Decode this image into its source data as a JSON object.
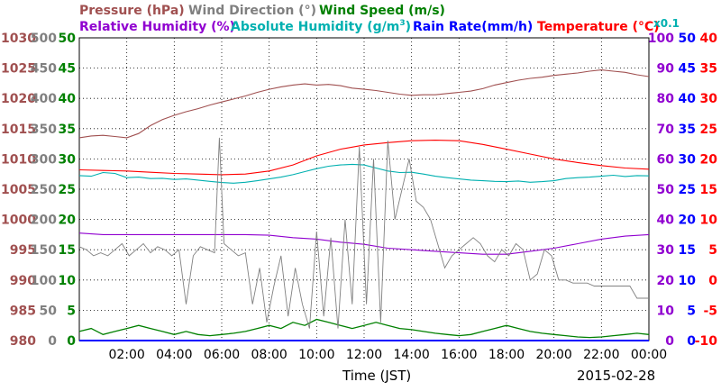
{
  "legend": {
    "pressure": "Pressure (hPa)",
    "wind_direction": "Wind Direction (°)",
    "wind_speed": "Wind Speed (m/s)",
    "relative_humidity": "Relative Humidity (%)",
    "absolute_humidity": "Absolute Humidity (g/m",
    "absolute_humidity_sup": "3",
    "absolute_humidity_close": ")",
    "abs_scale_note": "x0.1",
    "rain_rate": "Rain Rate(mm/h)",
    "temperature": "Temperature (°C)"
  },
  "colors": {
    "pressure": "#a05050",
    "wind_direction": "#808080",
    "wind_speed": "#008000",
    "relative_humidity": "#9000d0",
    "absolute_humidity": "#00b0b0",
    "rain_rate": "#0000ff",
    "temperature": "#ff0000"
  },
  "xaxis": {
    "label": "Time (JST)",
    "date": "2015-02-28",
    "ticks": [
      "02:00",
      "04:00",
      "06:00",
      "08:00",
      "10:00",
      "12:00",
      "14:00",
      "16:00",
      "18:00",
      "20:00",
      "22:00",
      "00:00"
    ]
  },
  "chart_data": {
    "type": "line",
    "x_range_hours": [
      0,
      24
    ],
    "grid": true,
    "left_axes": [
      {
        "name": "pressure",
        "ticks": [
          "1030",
          "1025",
          "1020",
          "1015",
          "1010",
          "1005",
          "1000",
          "995",
          "990",
          "985",
          "980"
        ],
        "ylim": [
          980,
          1030
        ]
      },
      {
        "name": "wind_direction",
        "ticks": [
          "500",
          "450",
          "400",
          "350",
          "300",
          "250",
          "200",
          "150",
          "100",
          "50",
          "0"
        ],
        "ylim": [
          0,
          500
        ]
      },
      {
        "name": "wind_speed",
        "ticks": [
          "50",
          "45",
          "40",
          "35",
          "30",
          "25",
          "20",
          "15",
          "10",
          "5",
          "0"
        ],
        "ylim": [
          0,
          50
        ]
      }
    ],
    "right_axes": [
      {
        "name": "relative_humidity",
        "ticks": [
          "100",
          "90",
          "80",
          "70",
          "60",
          "50",
          "40",
          "30",
          "20",
          "10",
          "0"
        ],
        "ylim": [
          0,
          100
        ]
      },
      {
        "name": "rain_rate",
        "ticks": [
          "50",
          "45",
          "40",
          "35",
          "30",
          "25",
          "20",
          "15",
          "10",
          "5",
          "0"
        ],
        "ylim": [
          0,
          50
        ]
      },
      {
        "name": "temperature",
        "ticks": [
          "40",
          "35",
          "30",
          "25",
          "20",
          "15",
          "10",
          "5",
          "0",
          "-5",
          "-10"
        ],
        "ylim": [
          -10,
          40
        ]
      }
    ],
    "series": [
      {
        "name": "Pressure (hPa)",
        "key": "pressure",
        "axis": "pressure",
        "x": [
          0,
          0.5,
          1,
          1.5,
          2,
          2.5,
          3,
          3.5,
          4,
          4.5,
          5,
          5.5,
          6,
          6.5,
          7,
          7.5,
          8,
          8.5,
          9,
          9.5,
          10,
          10.5,
          11,
          11.5,
          12,
          12.5,
          13,
          13.5,
          14,
          14.5,
          15,
          15.5,
          16,
          16.5,
          17,
          17.5,
          18,
          18.5,
          19,
          19.5,
          20,
          20.5,
          21,
          21.5,
          22,
          22.5,
          23,
          23.5,
          24
        ],
        "y": [
          1013.5,
          1013.8,
          1013.9,
          1013.7,
          1013.5,
          1014.2,
          1015.5,
          1016.5,
          1017.2,
          1017.8,
          1018.3,
          1018.9,
          1019.4,
          1019.9,
          1020.4,
          1021.0,
          1021.5,
          1021.9,
          1022.2,
          1022.4,
          1022.2,
          1022.3,
          1022.1,
          1021.7,
          1021.5,
          1021.3,
          1021.0,
          1020.7,
          1020.5,
          1020.6,
          1020.6,
          1020.8,
          1021.0,
          1021.2,
          1021.6,
          1022.2,
          1022.6,
          1023.0,
          1023.3,
          1023.5,
          1023.8,
          1024.0,
          1024.2,
          1024.5,
          1024.7,
          1024.5,
          1024.3,
          1023.9,
          1023.6
        ]
      },
      {
        "name": "Temperature (°C)",
        "key": "temperature",
        "axis": "temperature",
        "x": [
          0,
          1,
          2,
          3,
          4,
          5,
          6,
          7,
          8,
          9,
          10,
          11,
          12,
          13,
          14,
          15,
          16,
          17,
          18,
          19,
          20,
          21,
          22,
          23,
          24
        ],
        "y": [
          18.2,
          18.1,
          18.0,
          17.8,
          17.6,
          17.5,
          17.4,
          17.5,
          18.0,
          19.0,
          20.5,
          21.6,
          22.3,
          22.7,
          23.0,
          23.1,
          23.0,
          22.4,
          21.6,
          20.8,
          20.0,
          19.4,
          18.9,
          18.5,
          18.3
        ]
      },
      {
        "name": "Absolute Humidity (g/m3) x0.1",
        "key": "absolute_humidity",
        "axis": "relative_humidity",
        "x": [
          0,
          0.5,
          1,
          1.5,
          2,
          2.5,
          3,
          3.5,
          4,
          4.5,
          5,
          5.5,
          6,
          6.5,
          7,
          7.5,
          8,
          8.5,
          9,
          9.5,
          10,
          10.5,
          11,
          11.5,
          12,
          12.5,
          13,
          13.5,
          14,
          14.5,
          15,
          15.5,
          16,
          16.5,
          17,
          17.5,
          18,
          18.5,
          19,
          19.5,
          20,
          20.5,
          21,
          21.5,
          22,
          22.5,
          23,
          23.5,
          24
        ],
        "y": [
          54.5,
          54.3,
          55.5,
          55.2,
          53.8,
          54.0,
          53.5,
          53.6,
          53.2,
          53.4,
          53.0,
          52.6,
          52.2,
          52.0,
          52.3,
          52.8,
          53.4,
          54.0,
          54.8,
          55.8,
          56.8,
          57.6,
          58.0,
          58.2,
          58.0,
          57.0,
          56.0,
          55.5,
          55.6,
          55.0,
          54.3,
          53.8,
          53.4,
          53.0,
          52.8,
          52.6,
          52.5,
          52.7,
          52.3,
          52.5,
          52.8,
          53.5,
          53.8,
          54.0,
          54.3,
          54.6,
          54.2,
          54.5,
          54.4
        ]
      },
      {
        "name": "Relative Humidity (%)",
        "key": "relative_humidity",
        "axis": "relative_humidity",
        "x": [
          0,
          1,
          2,
          3,
          4,
          5,
          6,
          7,
          8,
          9,
          10,
          11,
          12,
          13,
          14,
          15,
          16,
          17,
          18,
          19,
          20,
          21,
          22,
          23,
          24
        ],
        "y": [
          35.5,
          35.0,
          35.0,
          35.0,
          35.0,
          35.0,
          35.0,
          35.0,
          34.8,
          34.0,
          33.5,
          32.5,
          31.8,
          30.5,
          30.0,
          29.5,
          29.0,
          28.5,
          28.5,
          29.5,
          30.5,
          32.0,
          33.5,
          34.5,
          35.0
        ]
      },
      {
        "name": "Wind Direction (°)",
        "key": "wind_direction",
        "axis": "wind_direction",
        "x": [
          0,
          0.3,
          0.6,
          0.9,
          1.2,
          1.5,
          1.8,
          2.1,
          2.4,
          2.7,
          3.0,
          3.3,
          3.6,
          3.9,
          4.2,
          4.5,
          4.8,
          5.1,
          5.4,
          5.7,
          5.9,
          6.1,
          6.4,
          6.7,
          7.0,
          7.3,
          7.6,
          7.9,
          8.2,
          8.5,
          8.8,
          9.1,
          9.4,
          9.7,
          10.0,
          10.3,
          10.6,
          10.9,
          11.2,
          11.5,
          11.8,
          12.1,
          12.4,
          12.7,
          13.0,
          13.3,
          13.6,
          13.9,
          14.2,
          14.5,
          14.8,
          15.1,
          15.4,
          15.7,
          16.0,
          16.3,
          16.6,
          16.9,
          17.2,
          17.5,
          17.8,
          18.1,
          18.4,
          18.7,
          19.0,
          19.3,
          19.6,
          19.9,
          20.2,
          20.5,
          20.8,
          21.1,
          21.4,
          21.7,
          22.0,
          22.3,
          22.6,
          22.9,
          23.2,
          23.5,
          23.8,
          24.0
        ],
        "y": [
          155,
          150,
          140,
          145,
          140,
          150,
          160,
          140,
          150,
          160,
          145,
          155,
          150,
          140,
          150,
          60,
          140,
          155,
          150,
          145,
          335,
          160,
          150,
          140,
          145,
          60,
          120,
          30,
          90,
          140,
          40,
          120,
          60,
          20,
          180,
          40,
          170,
          20,
          200,
          60,
          320,
          60,
          300,
          30,
          330,
          200,
          250,
          300,
          230,
          220,
          200,
          160,
          120,
          140,
          150,
          160,
          170,
          160,
          140,
          130,
          150,
          140,
          160,
          150,
          100,
          110,
          150,
          140,
          100,
          100,
          95,
          95,
          95,
          90,
          90,
          90,
          90,
          90,
          90,
          70,
          70,
          70
        ]
      },
      {
        "name": "Wind Speed (m/s)",
        "key": "wind_speed",
        "axis": "wind_speed",
        "x": [
          0,
          0.5,
          1,
          1.5,
          2,
          2.5,
          3,
          3.5,
          4,
          4.5,
          5,
          5.5,
          6,
          6.5,
          7,
          7.5,
          8,
          8.5,
          9,
          9.5,
          10,
          10.5,
          11,
          11.5,
          12,
          12.5,
          13,
          13.5,
          14,
          14.5,
          15,
          15.5,
          16,
          16.5,
          17,
          17.5,
          18,
          18.5,
          19,
          19.5,
          20,
          20.5,
          21,
          21.5,
          22,
          22.5,
          23,
          23.5,
          24
        ],
        "y": [
          1.5,
          2,
          1,
          1.5,
          2,
          2.5,
          2,
          1.5,
          1,
          1.5,
          1,
          0.8,
          1,
          1.2,
          1.5,
          2,
          2.5,
          2,
          3,
          2.5,
          3.5,
          3,
          2.5,
          2,
          2.5,
          3,
          2.5,
          2,
          1.8,
          1.5,
          1.2,
          1,
          0.8,
          1,
          1.5,
          2,
          2.5,
          2,
          1.5,
          1.2,
          1,
          0.8,
          0.6,
          0.5,
          0.6,
          0.8,
          1,
          1.2,
          1
        ]
      }
    ]
  }
}
